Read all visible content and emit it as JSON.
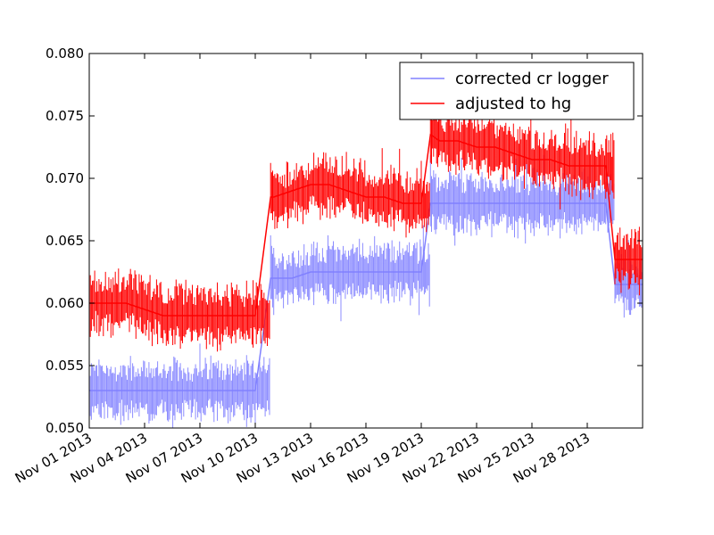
{
  "chart_data": {
    "type": "line",
    "title": "",
    "xlabel": "",
    "ylabel": "",
    "xlim": [
      "2013-11-01",
      "2013-12-01"
    ],
    "ylim": [
      0.05,
      0.08
    ],
    "x_tick_labels": [
      "Nov 01 2013",
      "Nov 04 2013",
      "Nov 07 2013",
      "Nov 10 2013",
      "Nov 13 2013",
      "Nov 16 2013",
      "Nov 19 2013",
      "Nov 22 2013",
      "Nov 25 2013",
      "Nov 28 2013"
    ],
    "x_ticks": [
      "2013-11-01",
      "2013-11-04",
      "2013-11-07",
      "2013-11-10",
      "2013-11-13",
      "2013-11-16",
      "2013-11-19",
      "2013-11-22",
      "2013-11-25",
      "2013-11-28"
    ],
    "y_tick_labels": [
      "0.050",
      "0.055",
      "0.060",
      "0.065",
      "0.070",
      "0.075",
      "0.080"
    ],
    "y_ticks": [
      0.05,
      0.055,
      0.06,
      0.065,
      0.07,
      0.075,
      0.08
    ],
    "grid": false,
    "legend_position": "top-right",
    "series": [
      {
        "name": "corrected cr logger",
        "color": "#8080ff",
        "x": [
          "2013-11-01",
          "2013-11-02",
          "2013-11-03",
          "2013-11-04",
          "2013-11-05",
          "2013-11-06",
          "2013-11-07",
          "2013-11-08",
          "2013-11-09",
          "2013-11-10",
          "2013-11-10 20:00",
          "2013-11-11",
          "2013-11-12",
          "2013-11-13",
          "2013-11-14",
          "2013-11-15",
          "2013-11-16",
          "2013-11-17",
          "2013-11-18",
          "2013-11-19",
          "2013-11-19 12:00",
          "2013-11-20",
          "2013-11-21",
          "2013-11-22",
          "2013-11-23",
          "2013-11-24",
          "2013-11-25",
          "2013-11-26",
          "2013-11-27",
          "2013-11-28",
          "2013-11-29",
          "2013-11-29 12:00",
          "2013-11-30",
          "2013-12-01"
        ],
        "y": [
          0.053,
          0.053,
          0.053,
          0.053,
          0.053,
          0.053,
          0.053,
          0.053,
          0.053,
          0.053,
          0.062,
          0.062,
          0.062,
          0.0625,
          0.0625,
          0.0625,
          0.0625,
          0.0625,
          0.0625,
          0.0625,
          0.068,
          0.068,
          0.068,
          0.068,
          0.068,
          0.068,
          0.068,
          0.068,
          0.068,
          0.068,
          0.068,
          0.0615,
          0.0615,
          0.0615
        ],
        "band": [
          0.052,
          0.055
        ]
      },
      {
        "name": "adjusted to hg",
        "color": "#ff0000",
        "x": [
          "2013-11-01",
          "2013-11-02",
          "2013-11-03",
          "2013-11-04",
          "2013-11-05",
          "2013-11-06",
          "2013-11-07",
          "2013-11-08",
          "2013-11-09",
          "2013-11-10",
          "2013-11-10 20:00",
          "2013-11-11",
          "2013-11-12",
          "2013-11-13",
          "2013-11-14",
          "2013-11-15",
          "2013-11-16",
          "2013-11-17",
          "2013-11-18",
          "2013-11-19",
          "2013-11-19 12:00",
          "2013-11-20",
          "2013-11-21",
          "2013-11-22",
          "2013-11-23",
          "2013-11-24",
          "2013-11-25",
          "2013-11-26",
          "2013-11-27",
          "2013-11-28",
          "2013-11-29",
          "2013-11-29 12:00",
          "2013-11-30",
          "2013-12-01"
        ],
        "y": [
          0.06,
          0.06,
          0.06,
          0.0595,
          0.059,
          0.059,
          0.059,
          0.059,
          0.059,
          0.059,
          0.0685,
          0.0685,
          0.069,
          0.0695,
          0.0695,
          0.069,
          0.0685,
          0.0685,
          0.068,
          0.068,
          0.0735,
          0.073,
          0.073,
          0.0725,
          0.0725,
          0.072,
          0.0715,
          0.0715,
          0.071,
          0.071,
          0.071,
          0.0635,
          0.0635,
          0.0635
        ]
      }
    ]
  }
}
